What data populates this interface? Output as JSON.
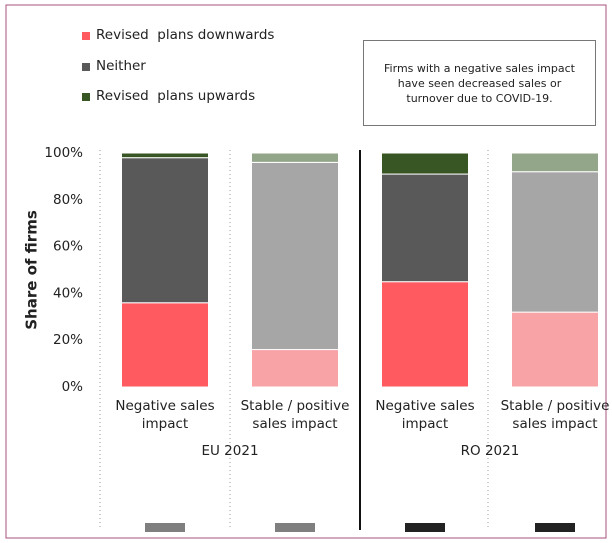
{
  "chart_data": {
    "type": "stacked_bar",
    "y_label": "Share of firms",
    "annotation": "Firms with a negative sales impact have seen decreased sales or turnover due to COVID-19.",
    "groups": [
      "EU 2021",
      "RO 2021"
    ],
    "categories": [
      "Negative sales impact",
      "Stable / positive sales impact",
      "Negative sales impact",
      "Stable / positive sales impact"
    ],
    "series": [
      {
        "name": "Revised  plans downwards",
        "color": "#ff5a5f",
        "colors": [
          "#ff5a5f",
          "#f8a3a6",
          "#ff5a5f",
          "#f8a3a6"
        ],
        "values": [
          36,
          16,
          45,
          32
        ]
      },
      {
        "name": "Neither",
        "color": "#595959",
        "colors": [
          "#595959",
          "#a6a6a6",
          "#595959",
          "#a6a6a6"
        ],
        "values": [
          62,
          80,
          46,
          60
        ]
      },
      {
        "name": "Revised  plans upwards",
        "color": "#375623",
        "colors": [
          "#375623",
          "#94a68a",
          "#375623",
          "#94a68a"
        ],
        "values": [
          2,
          4,
          9,
          8
        ]
      }
    ],
    "ylim": [
      0,
      100
    ],
    "yticks": [
      {
        "value": 0,
        "label": "0%"
      },
      {
        "value": 20,
        "label": "20%"
      },
      {
        "value": 40,
        "label": "40%"
      },
      {
        "value": 60,
        "label": "60%"
      },
      {
        "value": 80,
        "label": "80%"
      },
      {
        "value": 100,
        "label": "100%"
      }
    ],
    "grid": false
  }
}
